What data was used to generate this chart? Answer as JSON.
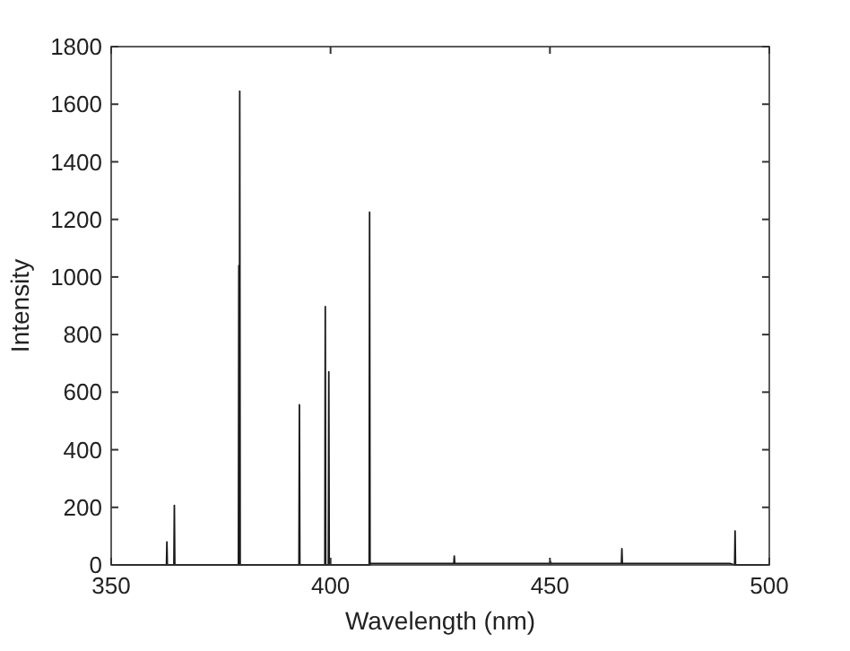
{
  "chart_data": {
    "type": "line",
    "xlabel": "Wavelength (nm)",
    "ylabel": "Intensity",
    "xlim": [
      350,
      500
    ],
    "ylim": [
      0,
      1800
    ],
    "xticks": [
      350,
      400,
      450,
      500
    ],
    "yticks": [
      0,
      200,
      400,
      600,
      800,
      1000,
      1200,
      1400,
      1600,
      1800
    ],
    "marker": "none",
    "line_style": "solid",
    "series": [
      {
        "color": "#1a1a1a",
        "x": [
          350,
          362.6,
          362.7,
          362.8,
          364.3,
          364.4,
          364.5,
          379.0,
          379.1,
          379.2,
          379.3,
          379.4,
          392.8,
          392.9,
          393.0,
          398.7,
          398.8,
          398.9,
          399.5,
          399.6,
          399.7,
          408.8,
          408.9,
          409.0,
          409.2,
          428.1,
          428.2,
          428.3,
          450.0,
          450.1,
          450.2,
          466.3,
          466.4,
          466.5,
          491.0,
          492.1,
          492.2,
          492.3,
          500
        ],
        "values": [
          0,
          0,
          80,
          0,
          0,
          207,
          0,
          0,
          1040,
          0,
          1645,
          0,
          0,
          556,
          0,
          0,
          897,
          0,
          0,
          671,
          0,
          0,
          1225,
          0,
          5,
          5,
          31,
          5,
          5,
          12,
          5,
          5,
          56,
          5,
          5,
          0,
          118,
          0,
          0
        ]
      }
    ]
  }
}
